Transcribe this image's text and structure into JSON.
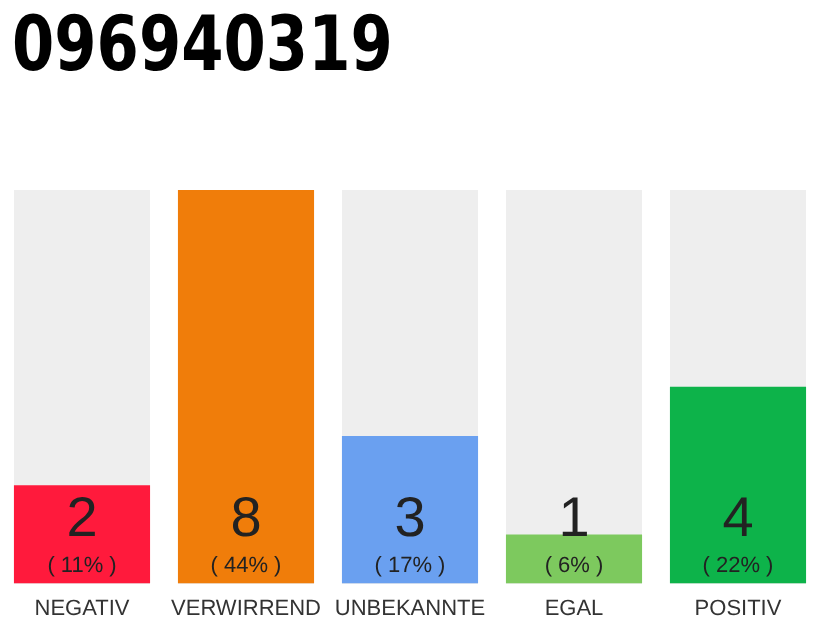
{
  "chart_data": {
    "type": "bar",
    "title": "096940319",
    "categories": [
      "NEGATIV",
      "VERWIRREND",
      "UNBEKANNTE",
      "EGAL",
      "POSITIV"
    ],
    "values": [
      2,
      8,
      3,
      1,
      4
    ],
    "colors": [
      "#ff1a3c",
      "#f07d0a",
      "#6aa0f0",
      "#7dc95e",
      "#0db34a"
    ],
    "value_labels": [
      "2\n( 11% )",
      "8\n( 44% )",
      "3\n( 17% )",
      "1\n( 6% )",
      "4\n( 22% )"
    ],
    "tick_labels": "x",
    "grid": false,
    "legend": false
  }
}
